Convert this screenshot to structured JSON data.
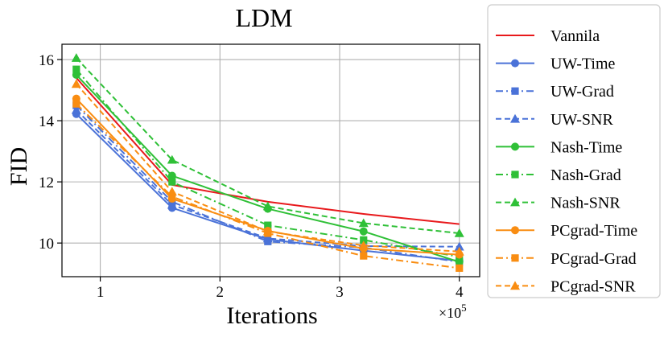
{
  "chart_data": {
    "type": "line",
    "title": "LDM",
    "xlabel": "Iterations",
    "ylabel": "FID",
    "x_offset_label": "×10",
    "x_offset_exponent": "5",
    "x_ticks": [
      1,
      2,
      3,
      4
    ],
    "y_ticks": [
      10,
      12,
      14,
      16
    ],
    "xlim": [
      0.68,
      4.17
    ],
    "ylim": [
      8.9,
      16.5
    ],
    "grid": true,
    "legend_position": "right-outside",
    "x": [
      0.8,
      1.6,
      2.4,
      3.2,
      4.0
    ],
    "series": [
      {
        "name": "Vannila",
        "values": [
          15.4,
          11.9,
          11.35,
          10.95,
          10.62
        ],
        "color": "#e8191c",
        "dash": "solid",
        "marker": "none"
      },
      {
        "name": "UW-Time",
        "values": [
          14.22,
          11.15,
          10.12,
          9.75,
          9.42
        ],
        "color": "#4a72d8",
        "dash": "solid",
        "marker": "circle"
      },
      {
        "name": "UW-Grad",
        "values": [
          14.5,
          11.35,
          10.05,
          9.85,
          9.38
        ],
        "color": "#4a72d8",
        "dash": "dashdot",
        "marker": "square"
      },
      {
        "name": "UW-SNR",
        "values": [
          14.35,
          11.25,
          10.15,
          9.9,
          9.88
        ],
        "color": "#4a72d8",
        "dash": "dashed",
        "marker": "triangle"
      },
      {
        "name": "Nash-Time",
        "values": [
          15.5,
          12.2,
          11.12,
          10.38,
          9.38
        ],
        "color": "#2fc037",
        "dash": "solid",
        "marker": "circle"
      },
      {
        "name": "Nash-Grad",
        "values": [
          15.68,
          12.0,
          10.58,
          10.1,
          9.55
        ],
        "color": "#2fc037",
        "dash": "dashdot",
        "marker": "square"
      },
      {
        "name": "Nash-SNR",
        "values": [
          16.05,
          12.72,
          11.2,
          10.65,
          10.32
        ],
        "color": "#2fc037",
        "dash": "dashed",
        "marker": "triangle"
      },
      {
        "name": "PCgrad-Time",
        "values": [
          14.72,
          11.45,
          10.4,
          9.82,
          9.62
        ],
        "color": "#f98d12",
        "dash": "solid",
        "marker": "circle"
      },
      {
        "name": "PCgrad-Grad",
        "values": [
          14.55,
          11.52,
          10.32,
          9.58,
          9.18
        ],
        "color": "#f98d12",
        "dash": "dashdot",
        "marker": "square"
      },
      {
        "name": "PCgrad-SNR",
        "values": [
          15.2,
          11.68,
          10.38,
          9.92,
          9.72
        ],
        "color": "#f98d12",
        "dash": "dashed",
        "marker": "triangle"
      }
    ]
  }
}
